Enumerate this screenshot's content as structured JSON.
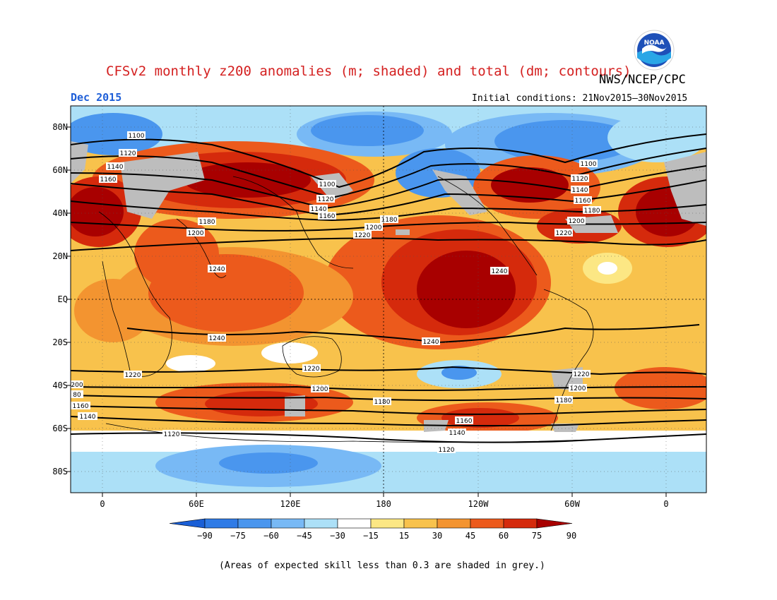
{
  "header": {
    "title": "CFSv2 monthly z200 anomalies (m; shaded) and total (dm; contours)",
    "agency": "NWS/NCEP/CPC",
    "period": "Dec 2015",
    "initial_conditions": "Initial conditions: 21Nov2015–30Nov2015",
    "logo_text": "NOAA"
  },
  "axes": {
    "lat_labels": [
      "80N",
      "60N",
      "40N",
      "20N",
      "EQ",
      "20S",
      "40S",
      "60S",
      "80S"
    ],
    "lon_labels": [
      "0",
      "60E",
      "120E",
      "180",
      "120W",
      "60W",
      "0"
    ]
  },
  "colorbar": {
    "labels": [
      "−90",
      "−75",
      "−60",
      "−45",
      "−30",
      "−15",
      "15",
      "30",
      "45",
      "60",
      "75",
      "90"
    ],
    "colors": [
      "#1a5fd6",
      "#2f7be6",
      "#4a96ee",
      "#78b9f5",
      "#ace0f7",
      "#ffffff",
      "#fce784",
      "#f8c24c",
      "#f39430",
      "#ec5a1c",
      "#d52a0c",
      "#a80000"
    ]
  },
  "contour_labels": [
    "1100",
    "1120",
    "1140",
    "1160",
    "1180",
    "1200",
    "1220",
    "1240"
  ],
  "footnote": "(Areas of expected skill less than 0.3 are shaded in grey.)",
  "colors": {
    "title": "#d42020",
    "period": "#1f5fd8",
    "low_skill": "#bdbdbd"
  }
}
